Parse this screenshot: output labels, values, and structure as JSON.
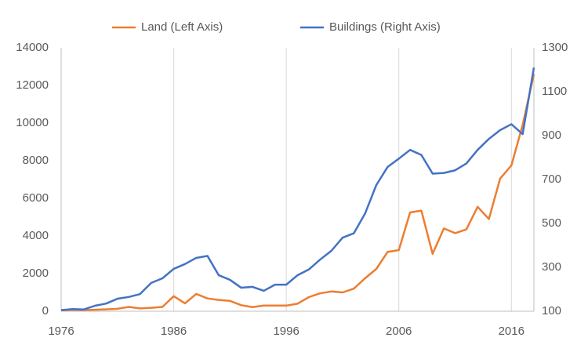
{
  "chart_data": {
    "type": "line",
    "x": [
      1976,
      1977,
      1978,
      1979,
      1980,
      1981,
      1982,
      1983,
      1984,
      1985,
      1986,
      1987,
      1988,
      1989,
      1990,
      1991,
      1992,
      1993,
      1994,
      1995,
      1996,
      1997,
      1998,
      1999,
      2000,
      2001,
      2002,
      2003,
      2004,
      2005,
      2006,
      2007,
      2008,
      2009,
      2010,
      2011,
      2012,
      2013,
      2014,
      2015,
      2016,
      2017,
      2018
    ],
    "series": [
      {
        "name": "Land (Left Axis)",
        "color": "#ED7D31",
        "axis": "y",
        "values": [
          50,
          80,
          60,
          80,
          100,
          130,
          230,
          150,
          180,
          230,
          800,
          420,
          920,
          680,
          600,
          550,
          320,
          220,
          300,
          300,
          300,
          400,
          750,
          950,
          1050,
          1000,
          1200,
          1750,
          2250,
          3150,
          3250,
          5250,
          5350,
          3050,
          4400,
          4150,
          4350,
          5550,
          4900,
          7050,
          7750,
          9900,
          12600
        ]
      },
      {
        "name": "Buildings (Right Axis)",
        "color": "#4472C4",
        "axis": "y2",
        "values": [
          105,
          110,
          108,
          125,
          135,
          157,
          165,
          178,
          229,
          250,
          293,
          315,
          343,
          352,
          264,
          243,
          207,
          211,
          193,
          221,
          221,
          264,
          290,
          335,
          375,
          435,
          455,
          545,
          675,
          757,
          795,
          835,
          812,
          727,
          730,
          742,
          773,
          835,
          885,
          925,
          952,
          907,
          1210
        ]
      }
    ],
    "xlim": [
      1976,
      2018
    ],
    "xticks": [
      1976,
      1986,
      1996,
      2006,
      2016
    ],
    "ylim": [
      0,
      14000
    ],
    "yticks": [
      0,
      2000,
      4000,
      6000,
      8000,
      10000,
      12000,
      14000
    ],
    "y2lim": [
      100,
      1300
    ],
    "y2ticks": [
      100,
      300,
      500,
      700,
      900,
      1100,
      1300
    ],
    "grid": "x",
    "legend": "top"
  }
}
